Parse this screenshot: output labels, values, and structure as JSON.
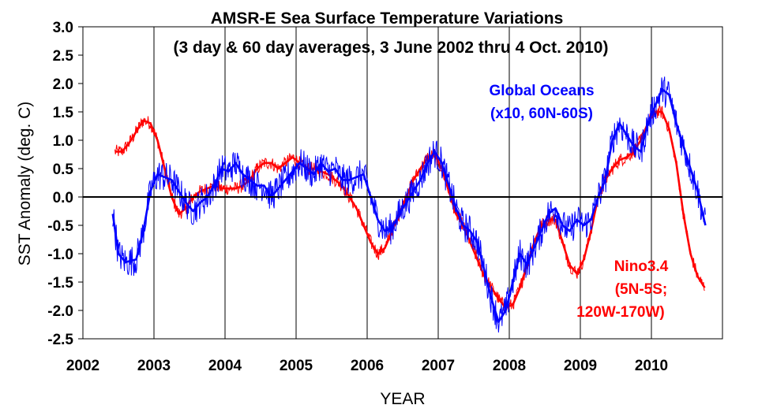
{
  "chart_data": {
    "type": "line",
    "title": "AMSR-E Sea Surface Temperature Variations",
    "subtitle": "(3 day & 60 day averages, 3 June 2002 thru 4 Oct. 2010)",
    "xlabel": "YEAR",
    "ylabel": "SST Anomaly (deg. C)",
    "xlim": [
      2002,
      2011
    ],
    "ylim": [
      -2.5,
      3.0
    ],
    "x_ticks": [
      "2002",
      "2003",
      "2004",
      "2005",
      "2006",
      "2007",
      "2008",
      "2009",
      "2010"
    ],
    "y_ticks": [
      "3.0",
      "2.5",
      "2.0",
      "1.5",
      "1.0",
      "0.5",
      "0.0",
      "-0.5",
      "-1.0",
      "-1.5",
      "-2.0",
      "-2.5"
    ],
    "y_tick_values": [
      3.0,
      2.5,
      2.0,
      1.5,
      1.0,
      0.5,
      0.0,
      -0.5,
      -1.0,
      -1.5,
      -2.0,
      -2.5
    ],
    "grid": "vertical",
    "zero_line": true,
    "annotations": {
      "global": [
        "Global Oceans",
        "(x10, 60N-60S)"
      ],
      "nino": [
        "Nino3.4",
        "(5N-5S;",
        "120W-170W)"
      ]
    },
    "series": [
      {
        "color": "#0000ff",
        "x": [
          2002.42,
          2002.5,
          2002.6,
          2002.75,
          2002.85,
          2002.95,
          2003.05,
          2003.15,
          2003.25,
          2003.35,
          2003.45,
          2003.55,
          2003.65,
          2003.75,
          2003.85,
          2003.95,
          2004.05,
          2004.15,
          2004.25,
          2004.35,
          2004.45,
          2004.55,
          2004.65,
          2004.75,
          2004.85,
          2004.95,
          2005.05,
          2005.15,
          2005.25,
          2005.35,
          2005.45,
          2005.55,
          2005.65,
          2005.75,
          2005.85,
          2005.95,
          2006.05,
          2006.15,
          2006.25,
          2006.35,
          2006.45,
          2006.55,
          2006.65,
          2006.75,
          2006.85,
          2006.95,
          2007.05,
          2007.15,
          2007.25,
          2007.35,
          2007.45,
          2007.55,
          2007.65,
          2007.75,
          2007.85,
          2007.95,
          2008.05,
          2008.15,
          2008.25,
          2008.35,
          2008.45,
          2008.55,
          2008.65,
          2008.75,
          2008.85,
          2008.95,
          2009.05,
          2009.15,
          2009.25,
          2009.35,
          2009.45,
          2009.55,
          2009.65,
          2009.75,
          2009.85,
          2009.95,
          2010.05,
          2010.15,
          2010.25,
          2010.35,
          2010.45,
          2010.55,
          2010.65,
          2010.76
        ],
        "values": [
          -0.3,
          -1.0,
          -1.15,
          -1.1,
          -0.6,
          0.1,
          0.4,
          0.35,
          0.3,
          0.1,
          -0.1,
          -0.25,
          -0.1,
          0.0,
          0.2,
          0.5,
          0.45,
          0.6,
          0.4,
          0.3,
          0.2,
          0.2,
          0.0,
          0.15,
          0.3,
          0.45,
          0.6,
          0.5,
          0.4,
          0.6,
          0.45,
          0.5,
          0.3,
          0.3,
          0.35,
          0.4,
          0.0,
          -0.4,
          -0.6,
          -0.55,
          -0.3,
          -0.1,
          0.1,
          0.3,
          0.6,
          0.8,
          0.6,
          0.2,
          -0.2,
          -0.5,
          -0.6,
          -0.8,
          -1.3,
          -1.8,
          -2.2,
          -2.0,
          -1.5,
          -1.0,
          -1.2,
          -0.9,
          -0.6,
          -0.3,
          -0.2,
          -0.5,
          -0.6,
          -0.4,
          -0.5,
          -0.4,
          0.0,
          0.3,
          1.0,
          1.3,
          1.1,
          0.9,
          0.8,
          1.3,
          1.6,
          1.9,
          1.8,
          1.3,
          0.9,
          0.5,
          0.1,
          -0.5
        ]
      },
      {
        "color": "#ff0000",
        "x": [
          2002.45,
          2002.55,
          2002.65,
          2002.75,
          2002.85,
          2002.95,
          2003.05,
          2003.15,
          2003.25,
          2003.35,
          2003.45,
          2003.55,
          2003.65,
          2003.75,
          2003.85,
          2003.95,
          2004.05,
          2004.15,
          2004.25,
          2004.35,
          2004.45,
          2004.55,
          2004.65,
          2004.75,
          2004.85,
          2004.95,
          2005.05,
          2005.15,
          2005.25,
          2005.35,
          2005.45,
          2005.55,
          2005.65,
          2005.75,
          2005.85,
          2005.95,
          2006.05,
          2006.15,
          2006.25,
          2006.35,
          2006.45,
          2006.55,
          2006.65,
          2006.75,
          2006.85,
          2006.95,
          2007.05,
          2007.15,
          2007.25,
          2007.35,
          2007.45,
          2007.55,
          2007.65,
          2007.75,
          2007.85,
          2007.95,
          2008.05,
          2008.15,
          2008.25,
          2008.35,
          2008.45,
          2008.55,
          2008.65,
          2008.75,
          2008.85,
          2008.95,
          2009.05,
          2009.15,
          2009.25,
          2009.35,
          2009.45,
          2009.55,
          2009.65,
          2009.75,
          2009.85,
          2009.95,
          2010.05,
          2010.15,
          2010.25,
          2010.35,
          2010.45,
          2010.55,
          2010.65,
          2010.75
        ],
        "values": [
          0.8,
          0.8,
          0.95,
          1.15,
          1.35,
          1.3,
          1.0,
          0.5,
          0.0,
          -0.3,
          -0.2,
          0.0,
          0.1,
          0.15,
          0.2,
          0.15,
          0.15,
          0.15,
          0.2,
          0.3,
          0.5,
          0.6,
          0.6,
          0.5,
          0.6,
          0.7,
          0.6,
          0.5,
          0.5,
          0.45,
          0.4,
          0.3,
          0.2,
          0.0,
          -0.2,
          -0.5,
          -0.8,
          -1.0,
          -0.9,
          -0.6,
          -0.3,
          0.0,
          0.3,
          0.5,
          0.7,
          0.75,
          0.5,
          0.1,
          -0.3,
          -0.5,
          -0.8,
          -1.1,
          -1.4,
          -1.6,
          -1.8,
          -1.95,
          -1.9,
          -1.6,
          -1.2,
          -0.8,
          -0.5,
          -0.4,
          -0.4,
          -0.8,
          -1.2,
          -1.35,
          -1.1,
          -0.6,
          0.0,
          0.3,
          0.5,
          0.65,
          0.7,
          0.8,
          1.0,
          1.3,
          1.5,
          1.5,
          1.2,
          0.6,
          -0.3,
          -1.0,
          -1.4,
          -1.6
        ]
      }
    ]
  }
}
